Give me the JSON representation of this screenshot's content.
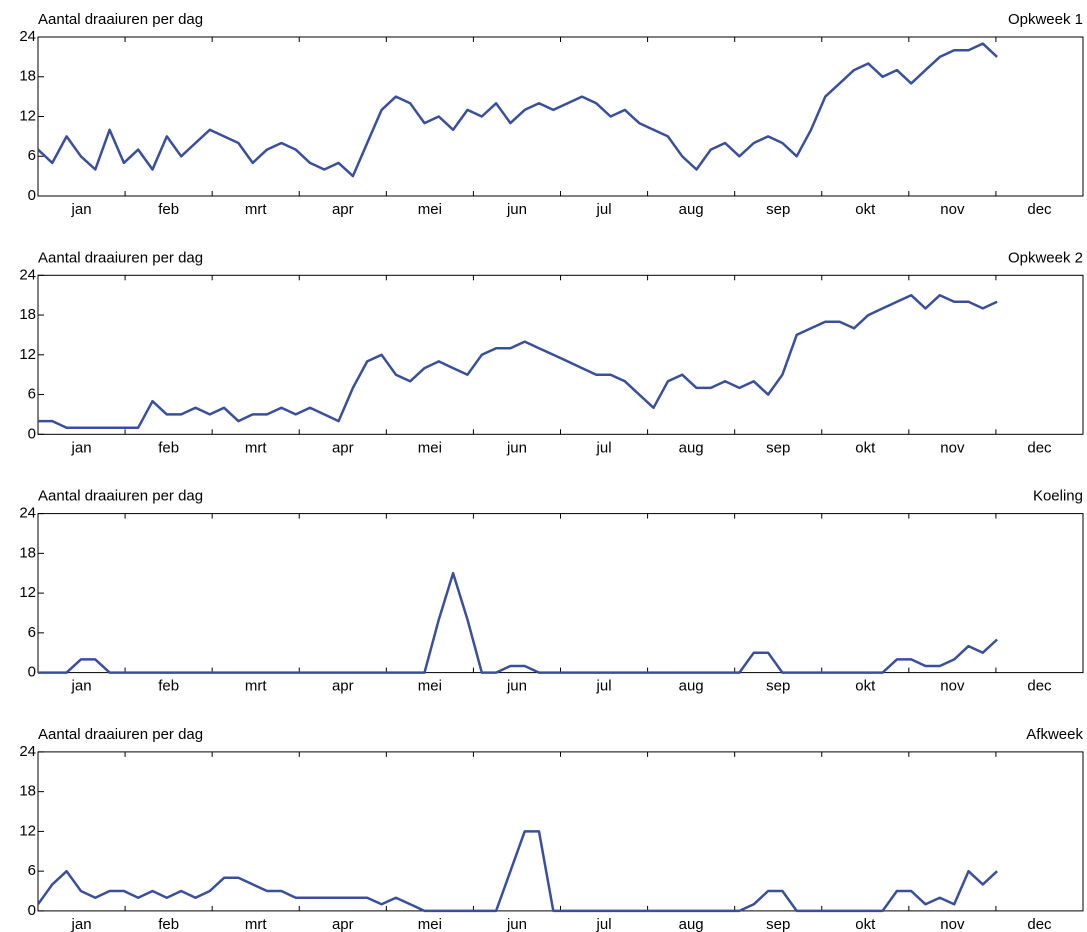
{
  "chart_data": [
    {
      "type": "line",
      "title": "Aantal draaiuren per dag",
      "months": [
        "jan",
        "feb",
        "mrt",
        "apr",
        "mei",
        "jun",
        "jul",
        "aug",
        "sep",
        "okt",
        "nov",
        "dec"
      ],
      "ylim": [
        0,
        24
      ],
      "yticks": [
        0,
        6,
        12,
        18,
        24
      ],
      "series": [
        {
          "name": "Opkweek 1",
          "color": "#3a4f9c",
          "values": [
            7,
            5,
            9,
            6,
            4,
            10,
            5,
            7,
            4,
            9,
            6,
            8,
            10,
            9,
            8,
            5,
            7,
            8,
            7,
            5,
            4,
            5,
            3,
            8,
            13,
            15,
            14,
            11,
            12,
            10,
            13,
            12,
            14,
            11,
            13,
            14,
            13,
            14,
            15,
            14,
            12,
            13,
            11,
            10,
            9,
            6,
            4,
            7,
            8,
            6,
            8,
            9,
            8,
            6,
            10,
            15,
            17,
            19,
            20,
            18,
            19,
            17,
            19,
            21,
            22,
            22,
            23,
            21,
            null,
            null,
            null,
            null,
            null
          ]
        }
      ]
    },
    {
      "type": "line",
      "title": "Aantal draaiuren per dag",
      "months": [
        "jan",
        "feb",
        "mrt",
        "apr",
        "mei",
        "jun",
        "jul",
        "aug",
        "sep",
        "okt",
        "nov",
        "dec"
      ],
      "ylim": [
        0,
        24
      ],
      "yticks": [
        0,
        6,
        12,
        18,
        24
      ],
      "series": [
        {
          "name": "Opkweek 2",
          "color": "#3a4f9c",
          "values": [
            2,
            2,
            1,
            1,
            1,
            1,
            1,
            1,
            5,
            3,
            3,
            4,
            3,
            4,
            2,
            3,
            3,
            4,
            3,
            4,
            3,
            2,
            7,
            11,
            12,
            9,
            8,
            10,
            11,
            10,
            9,
            12,
            13,
            13,
            14,
            13,
            12,
            11,
            10,
            9,
            9,
            8,
            6,
            4,
            8,
            9,
            7,
            7,
            8,
            7,
            8,
            6,
            9,
            15,
            16,
            17,
            17,
            16,
            18,
            19,
            20,
            21,
            19,
            21,
            20,
            20,
            19,
            20,
            null,
            null,
            null,
            null,
            null
          ]
        }
      ]
    },
    {
      "type": "line",
      "title": "Aantal draaiuren per dag",
      "months": [
        "jan",
        "feb",
        "mrt",
        "apr",
        "mei",
        "jun",
        "jul",
        "aug",
        "sep",
        "okt",
        "nov",
        "dec"
      ],
      "ylim": [
        0,
        24
      ],
      "yticks": [
        0,
        6,
        12,
        18,
        24
      ],
      "series": [
        {
          "name": "Koeling",
          "color": "#3a4f9c",
          "values": [
            0,
            0,
            0,
            2,
            2,
            0,
            0,
            0,
            0,
            0,
            0,
            0,
            0,
            0,
            0,
            0,
            0,
            0,
            0,
            0,
            0,
            0,
            0,
            0,
            0,
            0,
            0,
            0,
            8,
            15,
            8,
            0,
            0,
            1,
            1,
            0,
            0,
            0,
            0,
            0,
            0,
            0,
            0,
            0,
            0,
            0,
            0,
            0,
            0,
            0,
            3,
            3,
            0,
            0,
            0,
            0,
            0,
            0,
            0,
            0,
            2,
            2,
            1,
            1,
            2,
            4,
            3,
            5,
            null,
            null,
            null,
            null,
            null
          ]
        }
      ]
    },
    {
      "type": "line",
      "title": "Aantal draaiuren per dag",
      "months": [
        "jan",
        "feb",
        "mrt",
        "apr",
        "mei",
        "jun",
        "jul",
        "aug",
        "sep",
        "okt",
        "nov",
        "dec"
      ],
      "ylim": [
        0,
        24
      ],
      "yticks": [
        0,
        6,
        12,
        18,
        24
      ],
      "series": [
        {
          "name": "Afkweek",
          "color": "#3a4f9c",
          "values": [
            1,
            4,
            6,
            3,
            2,
            3,
            3,
            2,
            3,
            2,
            3,
            2,
            3,
            5,
            5,
            4,
            3,
            3,
            2,
            2,
            2,
            2,
            2,
            2,
            1,
            2,
            1,
            0,
            0,
            0,
            0,
            0,
            0,
            6,
            12,
            12,
            0,
            0,
            0,
            0,
            0,
            0,
            0,
            0,
            0,
            0,
            0,
            0,
            0,
            0,
            1,
            3,
            3,
            0,
            0,
            0,
            0,
            0,
            0,
            0,
            3,
            3,
            1,
            2,
            1,
            6,
            4,
            6,
            null,
            null,
            null,
            null,
            null
          ]
        }
      ]
    }
  ]
}
